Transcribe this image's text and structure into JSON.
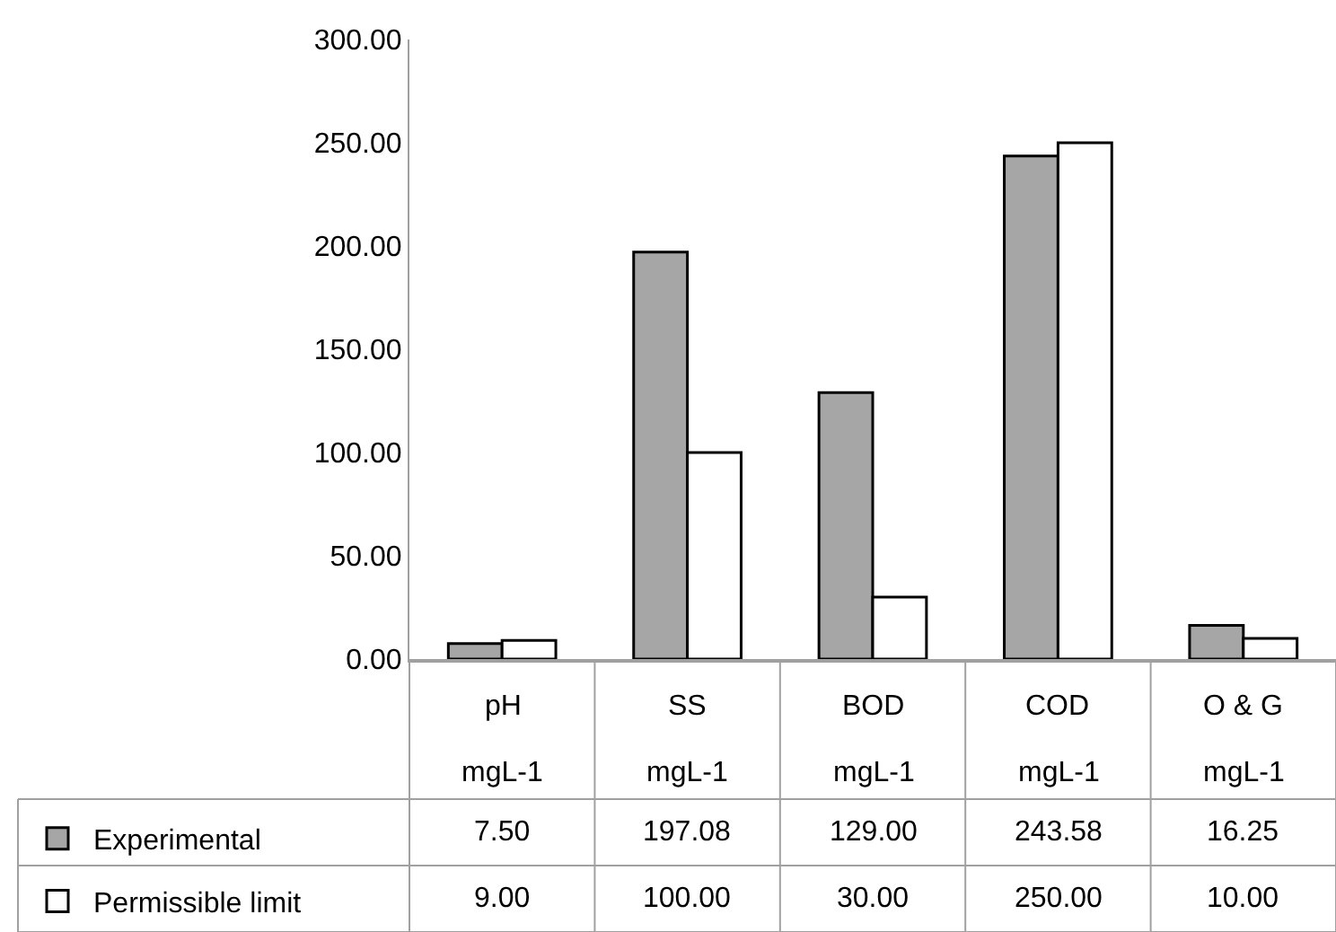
{
  "chart_data": {
    "type": "bar",
    "categories": [
      "pH\nmgL-1",
      "SS\nmgL-1",
      "BOD\nmgL-1",
      "COD\nmgL-1",
      "O & G\nmgL-1"
    ],
    "series": [
      {
        "name": "Experimental",
        "color": "#a6a6a6",
        "values": [
          7.5,
          197.08,
          129.0,
          243.58,
          16.25
        ],
        "value_labels": [
          "7.50",
          "197.08",
          "129.00",
          "243.58",
          "16.25"
        ]
      },
      {
        "name": "Permissible limit",
        "color": "#ffffff",
        "values": [
          9.0,
          100.0,
          30.0,
          250.0,
          10.0
        ],
        "value_labels": [
          "9.00",
          "100.00",
          "30.00",
          "250.00",
          "10.00"
        ]
      }
    ],
    "ylim": [
      0,
      300
    ],
    "yticks": [
      {
        "value": 0,
        "label": "0.00"
      },
      {
        "value": 50,
        "label": "50.00"
      },
      {
        "value": 100,
        "label": "100.00"
      },
      {
        "value": 150,
        "label": "150.00"
      },
      {
        "value": 200,
        "label": "200.00"
      },
      {
        "value": 250,
        "label": "250.00"
      },
      {
        "value": 300,
        "label": "300.00"
      }
    ],
    "legend": "bottom left"
  }
}
